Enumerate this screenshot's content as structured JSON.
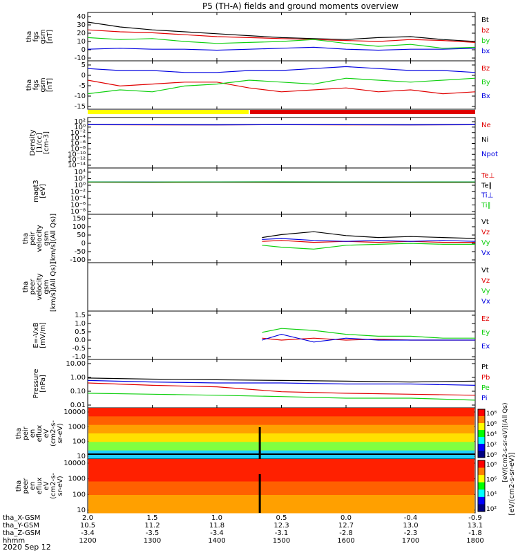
{
  "title": "P5 (TH-A) fields and ground moments overview",
  "date_label": "2020 Sep 12",
  "colors": {
    "black": "#000000",
    "red": "#e00000",
    "green": "#10d010",
    "blue": "#0000e0",
    "yellow": "#ffff00",
    "bar_red": "#e00000"
  },
  "colorbar_label": "[eV/(cm2-s-sr-eV)]",
  "colorbar_label2": "[eV/(cm2-s-sr-eV)](All Qs)",
  "chart_data": [
    {
      "type": "line",
      "ylabel_lines": [
        "tha",
        "fgs",
        "gsm",
        "[nT]"
      ],
      "yticks": [
        "40",
        "30",
        "20",
        "10",
        "0",
        "-10"
      ],
      "ylim": [
        -10,
        40
      ],
      "legend": [
        {
          "name": "Bt",
          "color": "#000000"
        },
        {
          "name": "bz",
          "color": "#e00000"
        },
        {
          "name": "by",
          "color": "#10d010"
        },
        {
          "name": "bx",
          "color": "#0000e0"
        }
      ],
      "series": [
        {
          "name": "Bt",
          "color": "#000000",
          "x": [
            12.0,
            12.5,
            13.0,
            13.5,
            14.0,
            14.5,
            15.0,
            15.5,
            16.0,
            16.5,
            17.0,
            17.5,
            18.0
          ],
          "values": [
            30,
            25,
            22,
            20,
            18,
            16,
            14,
            13,
            12,
            14,
            15,
            12,
            10
          ]
        },
        {
          "name": "bz",
          "color": "#e00000",
          "x": [
            12.0,
            12.5,
            13.0,
            13.5,
            14.0,
            14.5,
            15.0,
            15.5,
            16.0,
            16.5,
            17.0,
            17.5,
            18.0
          ],
          "values": [
            22,
            20,
            19,
            17,
            15,
            14,
            13,
            12,
            11,
            10,
            12,
            11,
            9
          ]
        },
        {
          "name": "by",
          "color": "#10d010",
          "x": [
            12.0,
            12.5,
            13.0,
            13.5,
            14.0,
            14.5,
            15.0,
            15.5,
            16.0,
            16.5,
            17.0,
            17.5,
            18.0
          ],
          "values": [
            14,
            12,
            13,
            10,
            8,
            9,
            10,
            12,
            8,
            5,
            7,
            3,
            4
          ]
        },
        {
          "name": "bx",
          "color": "#0000e0",
          "x": [
            12.0,
            12.5,
            13.0,
            13.5,
            14.0,
            14.5,
            15.0,
            15.5,
            16.0,
            16.5,
            17.0,
            17.5,
            18.0
          ],
          "values": [
            2,
            3,
            2,
            2,
            1,
            2,
            3,
            4,
            2,
            1,
            2,
            2,
            3
          ]
        }
      ]
    },
    {
      "type": "line",
      "ylabel_lines": [
        "tha",
        "fgs",
        "gsm",
        "[nT]"
      ],
      "yticks": [
        "5",
        "0",
        "-5",
        "-10",
        "-15"
      ],
      "ylim": [
        -18,
        7
      ],
      "legend": [
        {
          "name": "Bz",
          "color": "#e00000"
        },
        {
          "name": "By",
          "color": "#10d010"
        },
        {
          "name": "Bx",
          "color": "#0000e0"
        }
      ],
      "series": [
        {
          "name": "Bz",
          "color": "#e00000",
          "x": [
            12.0,
            12.5,
            13.0,
            13.5,
            14.0,
            14.5,
            15.0,
            15.5,
            16.0,
            16.5,
            17.0,
            17.5,
            18.0
          ],
          "values": [
            -3,
            -6,
            -5,
            -4,
            -4,
            -7,
            -9,
            -8,
            -7,
            -9,
            -8,
            -10,
            -9
          ]
        },
        {
          "name": "By",
          "color": "#10d010",
          "x": [
            12.0,
            12.5,
            13.0,
            13.5,
            14.0,
            14.5,
            15.0,
            15.5,
            16.0,
            16.5,
            17.0,
            17.5,
            18.0
          ],
          "values": [
            -10,
            -8,
            -9,
            -6,
            -5,
            -3,
            -4,
            -5,
            -2,
            -3,
            -4,
            -3,
            -2
          ]
        },
        {
          "name": "Bx",
          "color": "#0000e0",
          "x": [
            12.0,
            12.5,
            13.0,
            13.5,
            14.0,
            14.5,
            15.0,
            15.5,
            16.0,
            16.5,
            17.0,
            17.5,
            18.0
          ],
          "values": [
            3,
            2,
            2,
            1,
            1,
            2,
            2,
            3,
            4,
            3,
            2,
            2,
            1
          ]
        }
      ]
    },
    {
      "type": "line",
      "ylabel_lines": [
        "Density",
        "[1/cc]",
        "[cm-3]"
      ],
      "yticks": [
        "10²",
        "10⁰",
        "10⁻²",
        "10⁻⁴",
        "10⁻⁶",
        "10⁻⁸",
        "10⁻¹⁰",
        "10⁻¹²",
        "10⁻¹⁴"
      ],
      "yscale": "log",
      "ylim": [
        -15,
        2.5
      ],
      "legend": [
        {
          "name": "Ne",
          "color": "#e00000"
        },
        {
          "name": "Ni",
          "color": "#000000"
        },
        {
          "name": "Npot",
          "color": "#0000e0"
        }
      ],
      "series": [
        {
          "name": "Ne",
          "color": "#e00000",
          "x": [
            12.0,
            13.0,
            14.0,
            15.0,
            16.0,
            17.0,
            18.0
          ],
          "values": [
            1.0,
            0.9,
            0.9,
            1.0,
            0.9,
            0.9,
            1.0
          ]
        },
        {
          "name": "Ni",
          "color": "#000000",
          "x": [
            12.0,
            13.0,
            14.0,
            15.0,
            16.0,
            17.0,
            18.0
          ],
          "values": [
            1.1,
            1.0,
            1.0,
            1.1,
            1.0,
            1.0,
            1.1
          ]
        },
        {
          "name": "Npot",
          "color": "#0000e0",
          "x": [
            12.0,
            13.0,
            14.0,
            15.0,
            16.0,
            17.0,
            18.0
          ],
          "values": [
            1.0,
            1.0,
            0.9,
            1.0,
            1.0,
            0.9,
            1.0
          ]
        }
      ]
    },
    {
      "type": "line",
      "ylabel_lines": [
        "magt3",
        "[eV]"
      ],
      "yticks": [
        "10⁴",
        "10²",
        "10⁰",
        "10⁻²",
        "10⁻⁴",
        "10⁻⁶",
        "10⁻⁸"
      ],
      "yscale": "log",
      "ylim": [
        -9,
        4.5
      ],
      "legend": [
        {
          "name": "Te⊥",
          "color": "#e00000"
        },
        {
          "name": "Te∥",
          "color": "#000000"
        },
        {
          "name": "Ti⊥",
          "color": "#0000e0"
        },
        {
          "name": "Ti∥",
          "color": "#10d010"
        }
      ],
      "series": [
        {
          "name": "Te⊥",
          "color": "#e00000",
          "x": [
            12.0,
            13.0,
            14.0,
            15.0,
            16.0,
            17.0,
            18.0
          ],
          "values": [
            2.2,
            2.0,
            2.1,
            2.0,
            2.0,
            1.9,
            2.0
          ]
        },
        {
          "name": "Te∥",
          "color": "#000000",
          "x": [
            12.0,
            13.0,
            14.0,
            15.0,
            16.0,
            17.0,
            18.0
          ],
          "values": [
            2.4,
            2.2,
            2.3,
            2.2,
            2.2,
            2.1,
            2.2
          ]
        },
        {
          "name": "Ti⊥",
          "color": "#0000e0",
          "x": [
            12.0,
            13.0,
            14.0,
            15.0,
            16.0,
            17.0,
            18.0
          ],
          "values": [
            2.8,
            2.7,
            2.8,
            2.9,
            2.8,
            2.7,
            2.8
          ]
        },
        {
          "name": "Ti∥",
          "color": "#10d010",
          "x": [
            12.0,
            13.0,
            14.0,
            15.0,
            16.0,
            17.0,
            18.0
          ],
          "values": [
            2.7,
            2.6,
            2.7,
            2.8,
            2.7,
            2.6,
            2.7
          ]
        }
      ]
    },
    {
      "type": "line",
      "ylabel_lines": [
        "tha",
        "peir",
        "velocity",
        "gsm",
        "[km/s](All Qs)]"
      ],
      "yticks": [
        "150",
        "100",
        "50",
        "0",
        "-50",
        "-100"
      ],
      "ylim": [
        -100,
        150
      ],
      "legend": [
        {
          "name": "Vt",
          "color": "#000000"
        },
        {
          "name": "Vz",
          "color": "#e00000"
        },
        {
          "name": "Vy",
          "color": "#10d010"
        },
        {
          "name": "Vx",
          "color": "#0000e0"
        }
      ],
      "series": [
        {
          "name": "Vt",
          "color": "#000000",
          "x": [
            14.7,
            15.0,
            15.5,
            16.0,
            16.5,
            17.0,
            17.5,
            18.0
          ],
          "values": [
            30,
            45,
            60,
            40,
            30,
            35,
            30,
            25
          ]
        },
        {
          "name": "Vz",
          "color": "#e00000",
          "x": [
            14.7,
            15.0,
            15.5,
            16.0,
            16.5,
            17.0,
            17.5,
            18.0
          ],
          "values": [
            10,
            15,
            5,
            10,
            5,
            10,
            5,
            5
          ]
        },
        {
          "name": "Vy",
          "color": "#10d010",
          "x": [
            14.7,
            15.0,
            15.5,
            16.0,
            16.5,
            17.0,
            17.5,
            18.0
          ],
          "values": [
            -10,
            -20,
            -30,
            -10,
            -5,
            0,
            -5,
            -5
          ]
        },
        {
          "name": "Vx",
          "color": "#0000e0",
          "x": [
            14.7,
            15.0,
            15.5,
            16.0,
            16.5,
            17.0,
            17.5,
            18.0
          ],
          "values": [
            20,
            25,
            15,
            10,
            15,
            10,
            15,
            10
          ]
        }
      ]
    },
    {
      "type": "line",
      "ylabel_lines": [
        "tha",
        "peer",
        "velocity",
        "gsm",
        "[km/s](All Qs)]"
      ],
      "yticks": [],
      "ylim": [
        -100,
        150
      ],
      "legend": [
        {
          "name": "Vt",
          "color": "#000000"
        },
        {
          "name": "Vz",
          "color": "#e00000"
        },
        {
          "name": "Vy",
          "color": "#10d010"
        },
        {
          "name": "Vx",
          "color": "#0000e0"
        }
      ],
      "series": []
    },
    {
      "type": "line",
      "ylabel_lines": [
        "E=-VxB",
        "[mV/m]"
      ],
      "yticks": [
        "1.5",
        "1.0",
        "0.5",
        "0.0",
        "-0.5",
        "-1.0"
      ],
      "ylim": [
        -1.0,
        1.5
      ],
      "legend": [
        {
          "name": "Ez",
          "color": "#e00000"
        },
        {
          "name": "Ey",
          "color": "#10d010"
        },
        {
          "name": "Ex",
          "color": "#0000e0"
        }
      ],
      "series": [
        {
          "name": "Ez",
          "color": "#e00000",
          "x": [
            14.7,
            15.0,
            15.5,
            16.0,
            16.5,
            17.0,
            17.5,
            18.0
          ],
          "values": [
            0.1,
            0.0,
            0.1,
            0.0,
            0.05,
            0.0,
            0.0,
            0.0
          ]
        },
        {
          "name": "Ey",
          "color": "#10d010",
          "x": [
            14.7,
            15.0,
            15.5,
            16.0,
            16.5,
            17.0,
            17.5,
            18.0
          ],
          "values": [
            0.4,
            0.6,
            0.5,
            0.3,
            0.2,
            0.2,
            0.1,
            0.1
          ]
        },
        {
          "name": "Ex",
          "color": "#0000e0",
          "x": [
            14.7,
            15.0,
            15.5,
            16.0,
            16.5,
            17.0,
            17.5,
            18.0
          ],
          "values": [
            0.0,
            0.3,
            -0.1,
            0.1,
            0.0,
            0.0,
            0.0,
            0.0
          ]
        }
      ]
    },
    {
      "type": "line",
      "ylabel_lines": [
        "Pressure",
        "[nPa]"
      ],
      "yticks": [
        "10.00",
        "1.00",
        "0.10",
        "0.01"
      ],
      "yscale": "log",
      "ylim": [
        -2,
        1
      ],
      "legend": [
        {
          "name": "Pt",
          "color": "#000000"
        },
        {
          "name": "Pb",
          "color": "#e00000"
        },
        {
          "name": "Pe",
          "color": "#10d010"
        },
        {
          "name": "Pi",
          "color": "#0000e0"
        }
      ],
      "series": [
        {
          "name": "Pt",
          "color": "#000000",
          "x": [
            12.0,
            13.0,
            14.0,
            15.0,
            16.0,
            17.0,
            18.0
          ],
          "values": [
            0.7,
            0.6,
            0.55,
            0.5,
            0.45,
            0.4,
            0.45
          ]
        },
        {
          "name": "Pb",
          "color": "#e00000",
          "x": [
            12.0,
            13.0,
            14.0,
            15.0,
            16.0,
            17.0,
            18.0
          ],
          "values": [
            0.35,
            0.25,
            0.2,
            0.1,
            0.08,
            0.07,
            0.06
          ]
        },
        {
          "name": "Pe",
          "color": "#10d010",
          "x": [
            12.0,
            13.0,
            14.0,
            15.0,
            16.0,
            17.0,
            18.0
          ],
          "values": [
            0.08,
            0.07,
            0.06,
            0.05,
            0.04,
            0.04,
            0.03
          ]
        },
        {
          "name": "Pi",
          "color": "#0000e0",
          "x": [
            12.0,
            13.0,
            14.0,
            15.0,
            16.0,
            17.0,
            18.0
          ],
          "values": [
            0.5,
            0.4,
            0.35,
            0.35,
            0.3,
            0.3,
            0.25
          ]
        }
      ]
    },
    {
      "type": "heatmap",
      "ylabel_lines": [
        "tha",
        "peir",
        "en",
        "eflux",
        "eV",
        "(cm2-s-",
        "sr-eV)"
      ],
      "yticks": [
        "10000",
        "1000",
        "100",
        "10"
      ],
      "yscale": "log",
      "ylim": [
        1,
        4.2
      ]
    },
    {
      "type": "heatmap",
      "ylabel_lines": [
        "tha",
        "peer",
        "en",
        "eflux",
        "eV",
        "(cm2-s-",
        "sr-eV)"
      ],
      "yticks": [
        "10000",
        "1000",
        "100",
        "10"
      ],
      "yscale": "log",
      "ylim": [
        1,
        4.2
      ]
    }
  ],
  "colorbar": {
    "ticks_top": [
      "10⁸",
      "10⁶",
      "10⁴",
      "10²",
      "10⁰"
    ],
    "ticks_bottom": [
      "10⁸",
      "10⁶",
      "10⁴",
      "10²"
    ]
  },
  "x_axis": {
    "xlim": [
      12.0,
      18.0
    ],
    "tick_times": [
      12.0,
      13.0,
      14.0,
      15.0,
      16.0,
      17.0,
      18.0
    ],
    "row_labels": [
      "tha_X-GSM",
      "tha_Y-GSM",
      "tha_Z-GSM",
      "hhmm"
    ],
    "rows": [
      [
        "2.0",
        "1.5",
        "1.0",
        "0.5",
        "0.0",
        "-0.4",
        "-0.9"
      ],
      [
        "10.5",
        "11.2",
        "11.8",
        "12.3",
        "12.7",
        "13.0",
        "13.1"
      ],
      [
        "-3.4",
        "-3.5",
        "-3.4",
        "-3.1",
        "-2.8",
        "-2.3",
        "-1.8"
      ],
      [
        "1200",
        "1300",
        "1400",
        "1500",
        "1600",
        "1700",
        "1800"
      ]
    ]
  }
}
